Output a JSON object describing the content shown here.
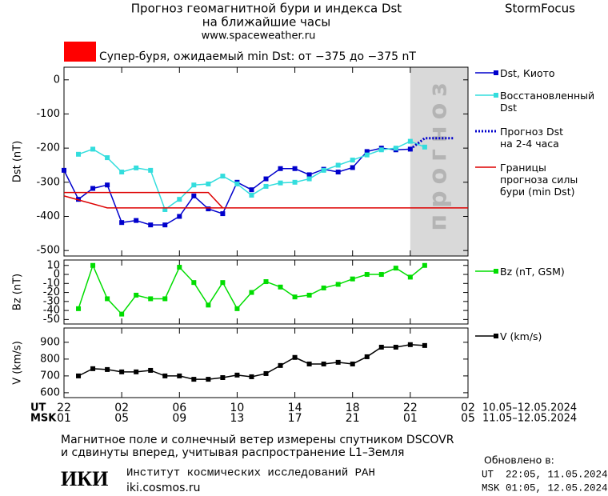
{
  "header": {
    "title": "Прогноз геомагнитной бури и индекса Dst",
    "subtitle": "на ближайшие часы",
    "url": "www.spaceweather.ru",
    "brand": "StormFocus",
    "alert": "Супер-буря, ожидаемый min Dst: от −375 до −375 nT",
    "alert_color": "#ff0000"
  },
  "chart_data": [
    {
      "type": "line",
      "ylabel": "Dst (nT)",
      "xlim": [
        0,
        28
      ],
      "xticks": [
        0,
        4,
        8,
        12,
        16,
        20,
        24,
        28
      ],
      "ylim": [
        -516,
        37
      ],
      "yticks": [
        0,
        -100,
        -200,
        -300,
        -400,
        -500
      ],
      "forecast_span": [
        24,
        28
      ],
      "forecast_label": "прогноз",
      "series": [
        {
          "name": "Dst, Киото",
          "color": "#0000cc",
          "markers": true,
          "x": [
            0,
            1,
            2,
            3,
            4,
            5,
            6,
            7,
            8,
            9,
            10,
            11,
            12,
            13,
            14,
            15,
            16,
            17,
            18,
            19,
            20,
            21,
            22,
            23,
            24
          ],
          "values": [
            -265,
            -350,
            -318,
            -308,
            -418,
            -412,
            -425,
            -425,
            -400,
            -340,
            -378,
            -392,
            -300,
            -322,
            -290,
            -260,
            -260,
            -278,
            -262,
            -270,
            -257,
            -210,
            -200,
            -205,
            -203
          ]
        },
        {
          "name": "Восстановленный\nDst",
          "color": "#33dddd",
          "markers": true,
          "x": [
            1,
            2,
            3,
            4,
            5,
            6,
            7,
            8,
            9,
            10,
            11,
            12,
            13,
            14,
            15,
            16,
            17,
            18,
            19,
            20,
            21,
            22,
            23,
            24,
            25
          ],
          "values": [
            -218,
            -203,
            -228,
            -270,
            -258,
            -265,
            -380,
            -350,
            -308,
            -305,
            -282,
            -305,
            -338,
            -312,
            -302,
            -300,
            -290,
            -265,
            -250,
            -235,
            -220,
            -205,
            -200,
            -180,
            -197
          ]
        },
        {
          "name": "Прогноз Dst\nна 2-4 часа",
          "color": "#0000cc",
          "dash": "dotted",
          "markers": false,
          "x": [
            24,
            25,
            27
          ],
          "values": [
            -203,
            -171,
            -171
          ]
        },
        {
          "name": "Границы\nпрогноза силы\nбури (min Dst)",
          "color": "#dd0000",
          "markers": false,
          "x": [
            0,
            10,
            11,
            null,
            0,
            3,
            28
          ],
          "values": [
            -330,
            -330,
            -375,
            null,
            -340,
            -375,
            -375
          ]
        }
      ]
    },
    {
      "type": "line",
      "ylabel": "Bz (nT)",
      "xlim": [
        0,
        28
      ],
      "xticks": [
        0,
        4,
        8,
        12,
        16,
        20,
        24,
        28
      ],
      "ylim": [
        -55,
        16
      ],
      "yticks": [
        10,
        0,
        -10,
        -20,
        -30,
        -40,
        -50
      ],
      "series": [
        {
          "name": "Bz (nT, GSM)",
          "color": "#00dd00",
          "markers": true,
          "x": [
            1,
            2,
            3,
            4,
            5,
            6,
            7,
            8,
            9,
            10,
            11,
            12,
            13,
            14,
            15,
            16,
            17,
            18,
            19,
            20,
            21,
            22,
            23,
            24,
            25
          ],
          "values": [
            -38,
            10,
            -27,
            -44,
            -23,
            -27,
            -27,
            8,
            -9,
            -34,
            -9,
            -38,
            -20,
            -8,
            -14,
            -25,
            -23,
            -15,
            -11,
            -5,
            0,
            0,
            7,
            -3,
            10
          ]
        }
      ]
    },
    {
      "type": "line",
      "ylabel": "V (km/s)",
      "xlim": [
        0,
        28
      ],
      "ylim": [
        571,
        985
      ],
      "yticks": [
        900,
        800,
        700,
        600
      ],
      "xticks": [
        {
          "value": 0,
          "label": "22"
        },
        {
          "value": 4,
          "label": "02"
        },
        {
          "value": 8,
          "label": "06"
        },
        {
          "value": 12,
          "label": "10"
        },
        {
          "value": 16,
          "label": "14"
        },
        {
          "value": 20,
          "label": "18"
        },
        {
          "value": 24,
          "label": "22"
        },
        {
          "value": 28,
          "label": "02"
        }
      ],
      "msk_ticks": [
        {
          "value": 0,
          "label": "01"
        },
        {
          "value": 4,
          "label": "05"
        },
        {
          "value": 8,
          "label": "09"
        },
        {
          "value": 12,
          "label": "13"
        },
        {
          "value": 16,
          "label": "17"
        },
        {
          "value": 20,
          "label": "21"
        },
        {
          "value": 24,
          "label": "01"
        },
        {
          "value": 28,
          "label": "05"
        }
      ],
      "ut_label": "UT",
      "msk_label": "MSK",
      "ut_range": "10.05–12.05.2024",
      "msk_range": "11.05–12.05.2024",
      "series": [
        {
          "name": "V (km/s)",
          "color": "#000000",
          "markers": true,
          "x": [
            1,
            2,
            3,
            4,
            5,
            6,
            7,
            8,
            9,
            10,
            11,
            12,
            13,
            14,
            15,
            16,
            17,
            18,
            19,
            20,
            21,
            22,
            23,
            24,
            25
          ],
          "values": [
            700,
            743,
            738,
            724,
            724,
            733,
            700,
            700,
            680,
            680,
            690,
            705,
            695,
            714,
            762,
            810,
            771,
            771,
            781,
            771,
            814,
            871,
            871,
            886,
            881
          ]
        }
      ]
    }
  ],
  "footer": {
    "note1": "Магнитное поле и солнечный ветер измерены спутником DSCOVR",
    "note2": "и сдвинуты вперед, учитывая распространение L1–Земля",
    "logo": "ИКИ",
    "institute": "Институт космических исследований РАН",
    "site": "iki.cosmos.ru",
    "updated_label": "Обновлено в:",
    "updated_ut": "UT  22:05, 11.05.2024",
    "updated_msk": "MSK 01:05, 12.05.2024"
  }
}
